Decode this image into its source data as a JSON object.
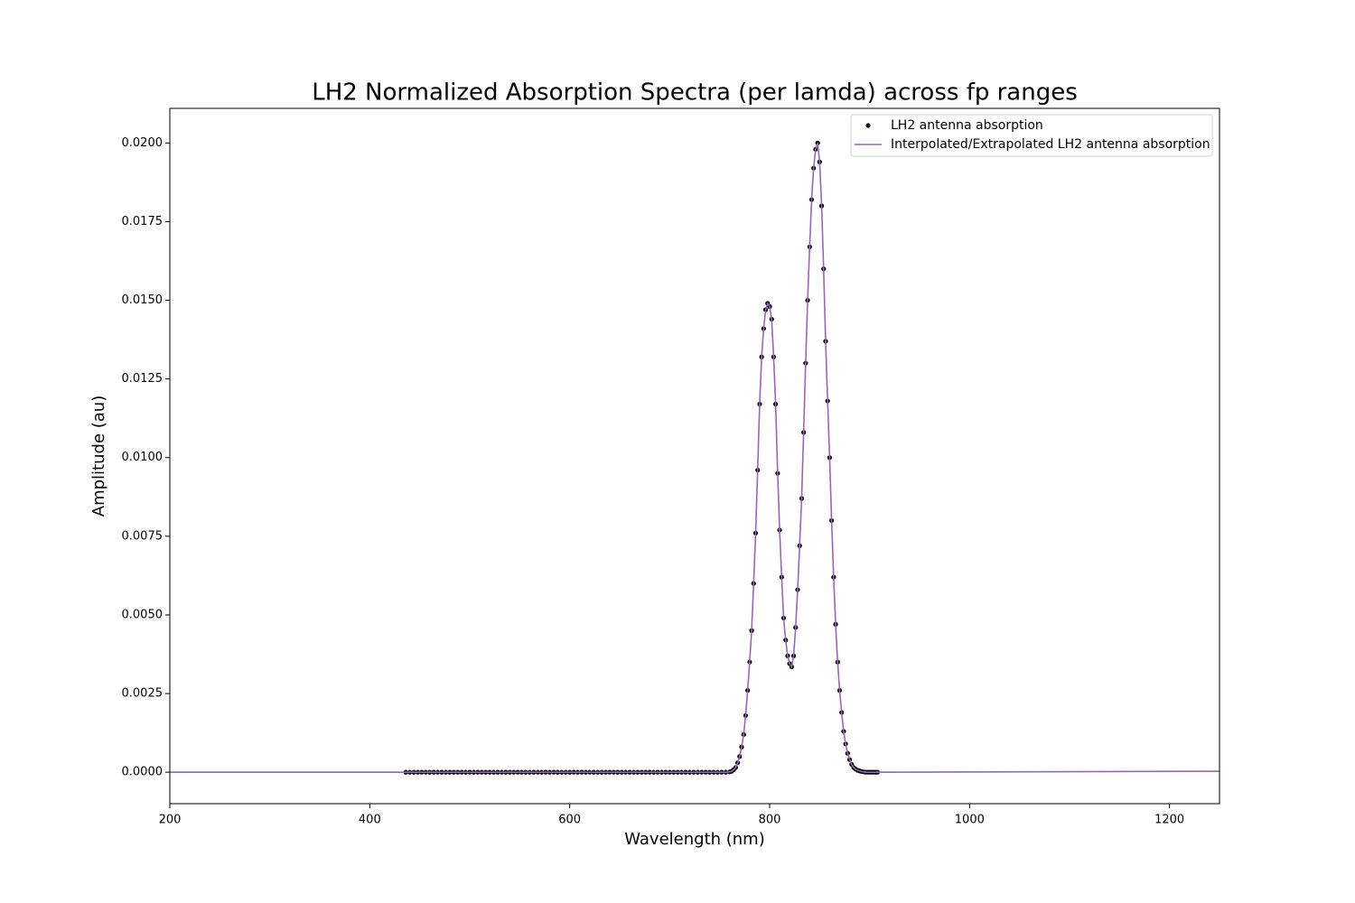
{
  "chart_data": {
    "type": "line",
    "title": "LH2 Normalized Absorption Spectra (per lamda) across fp ranges",
    "xlabel": "Wavelength (nm)",
    "ylabel": "Amplitude (au)",
    "xlim": [
      200,
      1250
    ],
    "ylim": [
      -0.001,
      0.0211
    ],
    "xticks": [
      200,
      400,
      600,
      800,
      1000,
      1200
    ],
    "yticks": [
      {
        "value": 0,
        "label": "0.0000"
      },
      {
        "value": 0.0025,
        "label": "0.0025"
      },
      {
        "value": 0.005,
        "label": "0.0050"
      },
      {
        "value": 0.0075,
        "label": "0.0075"
      },
      {
        "value": 0.01,
        "label": "0.0100"
      },
      {
        "value": 0.0125,
        "label": "0.0125"
      },
      {
        "value": 0.015,
        "label": "0.0150"
      },
      {
        "value": 0.0175,
        "label": "0.0175"
      },
      {
        "value": 0.02,
        "label": "0.0200"
      }
    ],
    "legend": "upper right",
    "series": [
      {
        "name": "LH2 antenna absorption",
        "type": "scatter",
        "color": "#000000",
        "x": [
          436,
          440,
          444,
          448,
          452,
          456,
          460,
          464,
          468,
          472,
          476,
          480,
          484,
          488,
          492,
          496,
          500,
          504,
          508,
          512,
          516,
          520,
          524,
          528,
          532,
          536,
          540,
          544,
          548,
          552,
          556,
          560,
          564,
          568,
          572,
          576,
          580,
          584,
          588,
          592,
          596,
          600,
          604,
          608,
          612,
          616,
          620,
          624,
          628,
          632,
          636,
          640,
          644,
          648,
          652,
          656,
          660,
          664,
          668,
          672,
          676,
          680,
          684,
          688,
          692,
          696,
          700,
          704,
          708,
          712,
          716,
          720,
          724,
          728,
          732,
          736,
          740,
          744,
          748,
          752,
          756,
          760,
          762,
          764,
          766,
          768,
          770,
          772,
          774,
          776,
          778,
          780,
          782,
          784,
          786,
          788,
          790,
          792,
          794,
          796,
          798,
          800,
          802,
          804,
          806,
          808,
          810,
          812,
          814,
          816,
          818,
          820,
          822,
          824,
          826,
          828,
          830,
          832,
          834,
          836,
          838,
          840,
          842,
          844,
          846,
          848,
          850,
          852,
          854,
          856,
          858,
          860,
          862,
          864,
          866,
          868,
          870,
          872,
          874,
          876,
          878,
          880,
          882,
          884,
          886,
          888,
          890,
          892,
          894,
          896,
          898,
          900,
          902,
          904,
          906,
          908
        ],
        "values": [
          0,
          0,
          0,
          0,
          0,
          0,
          0,
          0,
          0,
          0,
          0,
          0,
          0,
          0,
          0,
          0,
          0,
          0,
          0,
          0,
          0,
          0,
          0,
          0,
          0,
          0,
          0,
          0,
          0,
          0,
          0,
          0,
          0,
          0,
          0,
          0,
          0,
          0,
          0,
          0,
          0,
          0,
          0,
          0,
          0,
          0,
          0,
          0,
          0,
          0,
          0,
          0,
          0,
          0,
          0,
          0,
          0,
          0,
          0,
          0,
          0,
          0,
          0,
          0,
          0,
          0,
          0,
          0,
          0,
          0,
          0,
          0,
          0,
          0,
          0,
          0,
          0,
          0,
          0,
          0,
          0,
          1e-05,
          3e-05,
          8e-05,
          0.00015,
          0.0003,
          0.0005,
          0.0008,
          0.0012,
          0.0018,
          0.0026,
          0.0035,
          0.0045,
          0.006,
          0.0076,
          0.0096,
          0.0117,
          0.0132,
          0.0141,
          0.0147,
          0.0149,
          0.0148,
          0.0144,
          0.0132,
          0.0117,
          0.0095,
          0.0077,
          0.0062,
          0.0049,
          0.0042,
          0.0037,
          0.00345,
          0.00335,
          0.0037,
          0.0046,
          0.0058,
          0.0072,
          0.0087,
          0.0108,
          0.013,
          0.015,
          0.0167,
          0.0182,
          0.0192,
          0.0198,
          0.02,
          0.0194,
          0.018,
          0.016,
          0.0137,
          0.0118,
          0.01,
          0.008,
          0.0062,
          0.0047,
          0.0035,
          0.0026,
          0.0019,
          0.0013,
          0.0009,
          0.0006,
          0.0004,
          0.00025,
          0.00015,
          0.0001,
          6e-05,
          4e-05,
          2e-05,
          1e-05,
          0,
          0,
          0,
          0,
          0,
          0,
          0
        ]
      },
      {
        "name": "Interpolated/Extrapolated LH2 antenna absorption",
        "type": "line",
        "color": "#9467bd",
        "x": [
          200,
          436,
          756,
          760,
          762,
          764,
          766,
          768,
          770,
          772,
          774,
          776,
          778,
          780,
          782,
          784,
          786,
          788,
          790,
          792,
          794,
          796,
          798,
          800,
          802,
          804,
          806,
          808,
          810,
          812,
          814,
          816,
          818,
          820,
          822,
          824,
          826,
          828,
          830,
          832,
          834,
          836,
          838,
          840,
          842,
          844,
          846,
          848,
          850,
          852,
          854,
          856,
          858,
          860,
          862,
          864,
          866,
          868,
          870,
          872,
          874,
          876,
          878,
          880,
          882,
          884,
          886,
          888,
          890,
          892,
          894,
          896,
          908,
          1250
        ],
        "values": [
          0,
          0,
          0,
          1e-05,
          3e-05,
          8e-05,
          0.00015,
          0.0003,
          0.0005,
          0.0008,
          0.0012,
          0.0018,
          0.0026,
          0.0035,
          0.0045,
          0.006,
          0.0076,
          0.0096,
          0.0117,
          0.0132,
          0.0141,
          0.0147,
          0.0149,
          0.0148,
          0.0144,
          0.0132,
          0.0117,
          0.0095,
          0.0077,
          0.0062,
          0.0049,
          0.0042,
          0.0037,
          0.00345,
          0.00335,
          0.0037,
          0.0046,
          0.0058,
          0.0072,
          0.0087,
          0.0108,
          0.013,
          0.015,
          0.0167,
          0.0182,
          0.0192,
          0.0198,
          0.02,
          0.0194,
          0.018,
          0.016,
          0.0137,
          0.0118,
          0.01,
          0.008,
          0.0062,
          0.0047,
          0.0035,
          0.0026,
          0.0019,
          0.0013,
          0.0009,
          0.0006,
          0.0004,
          0.00025,
          0.00015,
          0.0001,
          6e-05,
          4e-05,
          2e-05,
          1e-05,
          0,
          0,
          3e-05
        ]
      }
    ]
  }
}
